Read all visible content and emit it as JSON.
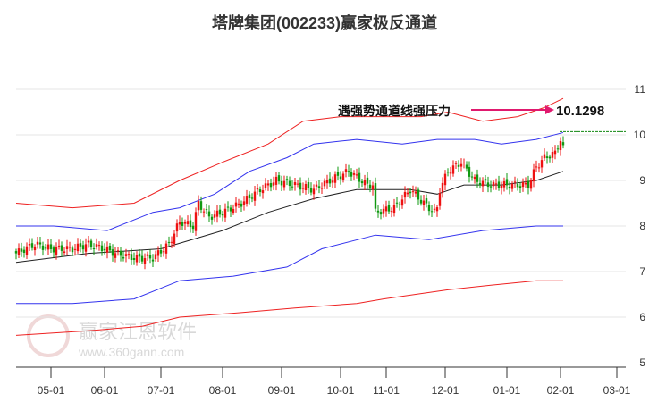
{
  "title": "塔牌集团(002233)赢家极反通道",
  "watermark": {
    "name": "赢家江恩软件",
    "url": "www.360gann.com",
    "seal": "江赢恩家"
  },
  "chart_data": {
    "type": "candlestick",
    "title": "塔牌集团(002233)赢家极反通道",
    "annotation": {
      "text": "遇强势通道线强压力",
      "value": "10.1298"
    },
    "yticks": [
      "11",
      "10",
      "9",
      "8",
      "7",
      "6",
      "5"
    ],
    "ylim": [
      5,
      11.2
    ],
    "xticks": [
      {
        "label": "05-01",
        "day": 13
      },
      {
        "label": "06-01",
        "day": 33
      },
      {
        "label": "07-01",
        "day": 54
      },
      {
        "label": "08-01",
        "day": 77
      },
      {
        "label": "09-01",
        "day": 99
      },
      {
        "label": "10-01",
        "day": 121
      },
      {
        "label": "11-01",
        "day": 138
      },
      {
        "label": "12-01",
        "day": 160
      },
      {
        "label": "01-01",
        "day": 183
      },
      {
        "label": "02-01",
        "day": 203
      },
      {
        "label": "03-01",
        "day": 224
      }
    ],
    "xlim": [
      0,
      230
    ],
    "price_path": [
      [
        0,
        7.4
      ],
      [
        7,
        7.6
      ],
      [
        13,
        7.5
      ],
      [
        21,
        7.5
      ],
      [
        27,
        7.6
      ],
      [
        33,
        7.5
      ],
      [
        37,
        7.4
      ],
      [
        44,
        7.3
      ],
      [
        51,
        7.3
      ],
      [
        57,
        7.6
      ],
      [
        61,
        8.1
      ],
      [
        66,
        8.0
      ],
      [
        68,
        8.5
      ],
      [
        72,
        8.2
      ],
      [
        77,
        8.3
      ],
      [
        84,
        8.5
      ],
      [
        91,
        8.8
      ],
      [
        97,
        9.0
      ],
      [
        104,
        8.9
      ],
      [
        111,
        8.8
      ],
      [
        117,
        9.0
      ],
      [
        124,
        9.2
      ],
      [
        131,
        8.9
      ],
      [
        133,
        8.9
      ],
      [
        134,
        8.3
      ],
      [
        141,
        8.4
      ],
      [
        147,
        8.8
      ],
      [
        152,
        8.5
      ],
      [
        156,
        8.3
      ],
      [
        157,
        8.4
      ],
      [
        158,
        8.8
      ],
      [
        161,
        9.2
      ],
      [
        166,
        9.4
      ],
      [
        171,
        9.0
      ],
      [
        177,
        8.9
      ],
      [
        184,
        8.9
      ],
      [
        191,
        8.9
      ],
      [
        194,
        9.3
      ],
      [
        197,
        9.5
      ],
      [
        201,
        9.6
      ],
      [
        203,
        9.9
      ],
      [
        204,
        9.7
      ]
    ],
    "series": [
      {
        "name": "mid",
        "color": "#222222",
        "points": [
          [
            0,
            7.2
          ],
          [
            27,
            7.4
          ],
          [
            54,
            7.5
          ],
          [
            77,
            7.9
          ],
          [
            94,
            8.3
          ],
          [
            111,
            8.6
          ],
          [
            127,
            8.8
          ],
          [
            147,
            8.8
          ],
          [
            157,
            8.7
          ],
          [
            167,
            8.9
          ],
          [
            181,
            8.9
          ],
          [
            194,
            9.0
          ],
          [
            204,
            9.2
          ]
        ]
      },
      {
        "name": "upper-blue",
        "color": "#3333ee",
        "points": [
          [
            0,
            8.0
          ],
          [
            14,
            8.0
          ],
          [
            34,
            7.9
          ],
          [
            51,
            8.3
          ],
          [
            61,
            8.4
          ],
          [
            74,
            8.7
          ],
          [
            87,
            9.2
          ],
          [
            101,
            9.5
          ],
          [
            111,
            9.8
          ],
          [
            127,
            9.9
          ],
          [
            144,
            9.8
          ],
          [
            157,
            9.9
          ],
          [
            171,
            9.9
          ],
          [
            181,
            9.8
          ],
          [
            194,
            9.9
          ],
          [
            204,
            10.05
          ]
        ]
      },
      {
        "name": "lower-blue",
        "color": "#3333ee",
        "points": [
          [
            0,
            6.3
          ],
          [
            21,
            6.3
          ],
          [
            44,
            6.4
          ],
          [
            61,
            6.8
          ],
          [
            81,
            6.9
          ],
          [
            101,
            7.1
          ],
          [
            114,
            7.5
          ],
          [
            134,
            7.8
          ],
          [
            154,
            7.7
          ],
          [
            174,
            7.9
          ],
          [
            194,
            8.0
          ],
          [
            204,
            8.0
          ]
        ]
      },
      {
        "name": "upper-red",
        "color": "#ee2222",
        "points": [
          [
            0,
            8.5
          ],
          [
            21,
            8.4
          ],
          [
            44,
            8.5
          ],
          [
            61,
            9.0
          ],
          [
            77,
            9.4
          ],
          [
            94,
            9.8
          ],
          [
            107,
            10.3
          ],
          [
            121,
            10.4
          ],
          [
            134,
            10.4
          ],
          [
            151,
            10.4
          ],
          [
            161,
            10.5
          ],
          [
            174,
            10.3
          ],
          [
            187,
            10.4
          ],
          [
            197,
            10.6
          ],
          [
            204,
            10.8
          ]
        ]
      },
      {
        "name": "lower-red",
        "color": "#ee2222",
        "points": [
          [
            0,
            5.6
          ],
          [
            27,
            5.7
          ],
          [
            47,
            5.8
          ],
          [
            61,
            6.0
          ],
          [
            84,
            6.1
          ],
          [
            104,
            6.2
          ],
          [
            127,
            6.3
          ],
          [
            137,
            6.4
          ],
          [
            161,
            6.6
          ],
          [
            177,
            6.7
          ],
          [
            194,
            6.8
          ],
          [
            204,
            6.8
          ]
        ]
      }
    ]
  }
}
